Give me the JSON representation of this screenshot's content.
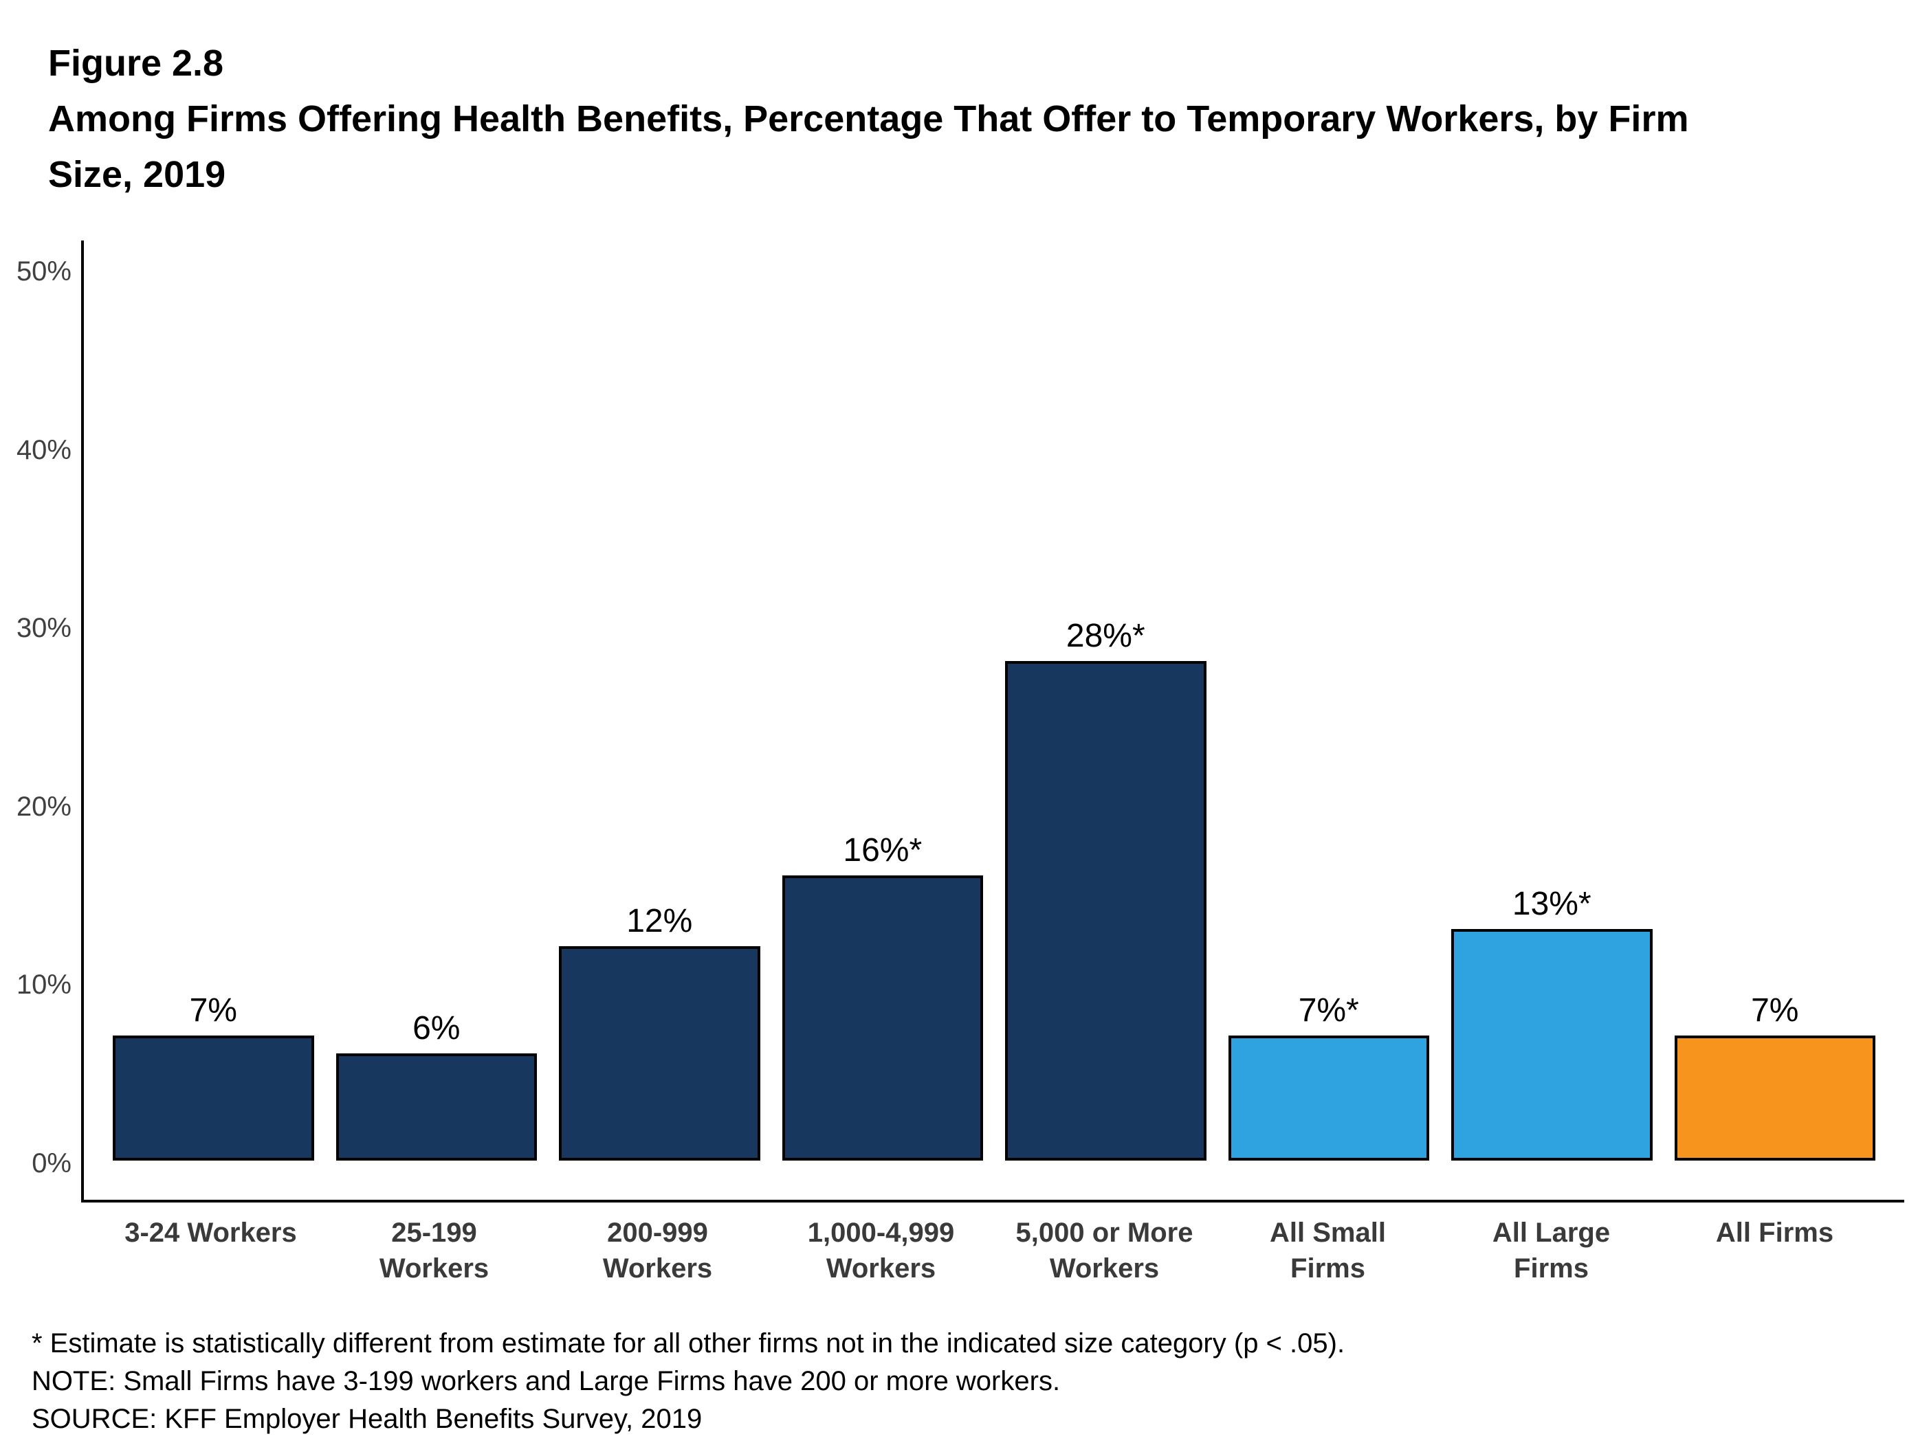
{
  "figure": {
    "label": "Figure 2.8",
    "title": "Among Firms Offering Health Benefits, Percentage That Offer to Temporary Workers, by Firm\nSize, 2019"
  },
  "chart_data": {
    "type": "bar",
    "categories": [
      "3-24 Workers",
      "25-199 Workers",
      "200-999 Workers",
      "1,000-4,999 Workers",
      "5,000 or More Workers",
      "All Small Firms",
      "All Large Firms",
      "All Firms"
    ],
    "x_tick_labels": [
      "3-24 Workers",
      "25-199 Workers",
      "200-999\nWorkers",
      "1,000-4,999\nWorkers",
      "5,000 or More\nWorkers",
      "All Small\nFirms",
      "All Large\nFirms",
      "All Firms"
    ],
    "values": [
      7,
      6,
      12,
      16,
      28,
      7,
      13,
      7
    ],
    "value_labels": [
      "7%",
      "6%",
      "12%",
      "16%*",
      "28%*",
      "7%*",
      "13%*",
      "7%"
    ],
    "bar_colors": [
      "#17375E",
      "#17375E",
      "#17375E",
      "#17375E",
      "#17375E",
      "#2FA3DF",
      "#2FA3DF",
      "#F7941E"
    ],
    "ylim": [
      0,
      50
    ],
    "y_tick_values": [
      0,
      10,
      20,
      30,
      40,
      50
    ],
    "y_tick_labels": [
      "0%",
      "10%",
      "20%",
      "30%",
      "40%",
      "50%"
    ],
    "grid": false,
    "legend_position": "none",
    "xlabel": "",
    "ylabel": ""
  },
  "footnotes": [
    "* Estimate is statistically different from estimate for all other firms not in the indicated size category (p < .05).",
    "NOTE: Small Firms have 3-199 workers and Large Firms have 200 or more workers.",
    "SOURCE: KFF Employer Health Benefits Survey, 2019"
  ]
}
